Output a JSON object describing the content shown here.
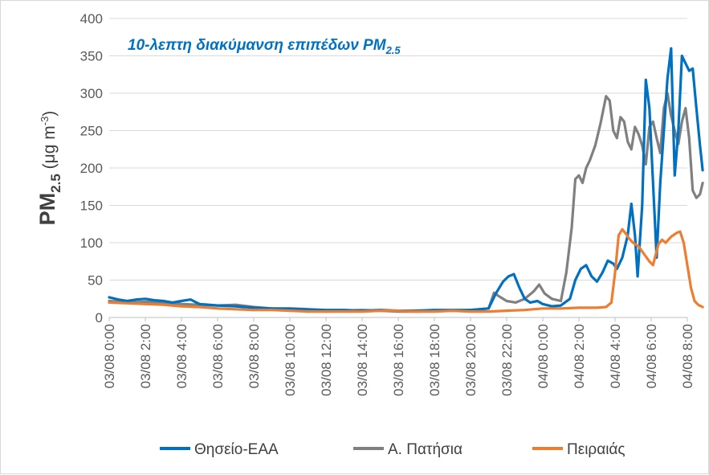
{
  "chart_data": {
    "type": "line",
    "title_main": "10-λεπτη διακύμανση επιπέδων PM",
    "title_sub": "2.5",
    "ylabel_main": "PM",
    "ylabel_sub": "2.5",
    "ylabel_unit": " (μg m",
    "ylabel_unit_sup": "-3",
    "ylabel_unit_end": ")",
    "ylim": [
      0,
      400
    ],
    "yticks": [
      "0",
      "50",
      "100",
      "150",
      "200",
      "250",
      "300",
      "350",
      "400"
    ],
    "x_range_hours": [
      0,
      32
    ],
    "xtick_labels": [
      "03/08 0:00",
      "03/08 2:00",
      "03/08 4:00",
      "03/08 6:00",
      "03/08 8:00",
      "03/08 10:00",
      "03/08 12:00",
      "03/08 14:00",
      "03/08 16:00",
      "03/08 18:00",
      "03/08 20:00",
      "03/08 22:00",
      "04/08 0:00",
      "04/08 2:00",
      "04/08 4:00",
      "04/08 6:00",
      "04/08 8:00"
    ],
    "grid": true,
    "legend_position": "bottom",
    "series": [
      {
        "name": "Θησείο-ΕΑΑ",
        "color": "#0070c0",
        "points": [
          [
            0,
            27
          ],
          [
            0.5,
            24
          ],
          [
            1,
            22
          ],
          [
            1.5,
            24
          ],
          [
            2,
            25
          ],
          [
            2.5,
            23
          ],
          [
            3,
            22
          ],
          [
            3.5,
            20
          ],
          [
            4,
            22
          ],
          [
            4.5,
            24
          ],
          [
            5,
            18
          ],
          [
            6,
            16
          ],
          [
            7,
            15
          ],
          [
            8,
            13
          ],
          [
            9,
            12
          ],
          [
            10,
            12
          ],
          [
            11,
            11
          ],
          [
            12,
            10
          ],
          [
            13,
            10
          ],
          [
            14,
            9
          ],
          [
            15,
            10
          ],
          [
            16,
            9
          ],
          [
            17,
            9
          ],
          [
            18,
            10
          ],
          [
            19,
            10
          ],
          [
            20,
            10
          ],
          [
            21,
            12
          ],
          [
            21.4,
            32
          ],
          [
            21.8,
            48
          ],
          [
            22.1,
            55
          ],
          [
            22.4,
            58
          ],
          [
            22.7,
            40
          ],
          [
            23,
            25
          ],
          [
            23.3,
            20
          ],
          [
            23.7,
            22
          ],
          [
            24,
            18
          ],
          [
            24.5,
            15
          ],
          [
            25,
            16
          ],
          [
            25.5,
            25
          ],
          [
            25.8,
            50
          ],
          [
            26.1,
            65
          ],
          [
            26.4,
            70
          ],
          [
            26.7,
            55
          ],
          [
            27,
            48
          ],
          [
            27.3,
            60
          ],
          [
            27.6,
            76
          ],
          [
            27.9,
            72
          ],
          [
            28.1,
            65
          ],
          [
            28.4,
            80
          ],
          [
            28.7,
            110
          ],
          [
            28.9,
            152
          ],
          [
            29.1,
            110
          ],
          [
            29.25,
            55
          ],
          [
            29.5,
            150
          ],
          [
            29.7,
            318
          ],
          [
            29.9,
            280
          ],
          [
            30.1,
            180
          ],
          [
            30.3,
            80
          ],
          [
            30.5,
            180
          ],
          [
            30.7,
            250
          ],
          [
            30.9,
            320
          ],
          [
            31.1,
            360
          ],
          [
            31.3,
            190
          ],
          [
            31.5,
            250
          ],
          [
            31.7,
            350
          ],
          [
            31.9,
            340
          ],
          [
            32.1,
            330
          ],
          [
            32.3,
            333
          ],
          [
            32.5,
            280
          ],
          [
            32.7,
            230
          ],
          [
            32.85,
            197
          ]
        ]
      },
      {
        "name": "Α. Πατήσια",
        "color": "#808080",
        "points": [
          [
            0,
            22
          ],
          [
            1,
            20
          ],
          [
            2,
            21
          ],
          [
            3,
            20
          ],
          [
            4,
            18
          ],
          [
            5,
            17
          ],
          [
            6,
            16
          ],
          [
            7,
            17
          ],
          [
            8,
            14
          ],
          [
            9,
            12
          ],
          [
            10,
            11
          ],
          [
            11,
            9
          ],
          [
            12,
            8
          ],
          [
            13,
            9
          ],
          [
            14,
            10
          ],
          [
            15,
            9
          ],
          [
            16,
            8
          ],
          [
            17,
            8
          ],
          [
            18,
            9
          ],
          [
            19,
            9
          ],
          [
            20,
            10
          ],
          [
            21,
            12
          ],
          [
            21.3,
            33
          ],
          [
            21.6,
            28
          ],
          [
            22,
            22
          ],
          [
            22.5,
            20
          ],
          [
            23,
            25
          ],
          [
            23.5,
            35
          ],
          [
            23.8,
            44
          ],
          [
            24.1,
            32
          ],
          [
            24.5,
            25
          ],
          [
            25,
            22
          ],
          [
            25.3,
            60
          ],
          [
            25.6,
            120
          ],
          [
            25.8,
            185
          ],
          [
            26,
            190
          ],
          [
            26.2,
            180
          ],
          [
            26.4,
            200
          ],
          [
            26.6,
            210
          ],
          [
            26.9,
            230
          ],
          [
            27.2,
            260
          ],
          [
            27.5,
            296
          ],
          [
            27.7,
            290
          ],
          [
            27.9,
            250
          ],
          [
            28.1,
            240
          ],
          [
            28.3,
            268
          ],
          [
            28.5,
            262
          ],
          [
            28.7,
            235
          ],
          [
            28.9,
            225
          ],
          [
            29.1,
            255
          ],
          [
            29.3,
            245
          ],
          [
            29.5,
            230
          ],
          [
            29.7,
            205
          ],
          [
            29.9,
            255
          ],
          [
            30.1,
            262
          ],
          [
            30.3,
            240
          ],
          [
            30.5,
            220
          ],
          [
            30.7,
            280
          ],
          [
            30.9,
            300
          ],
          [
            31.1,
            270
          ],
          [
            31.3,
            250
          ],
          [
            31.5,
            232
          ],
          [
            31.7,
            262
          ],
          [
            31.9,
            280
          ],
          [
            32.1,
            240
          ],
          [
            32.3,
            170
          ],
          [
            32.5,
            160
          ],
          [
            32.7,
            165
          ],
          [
            32.85,
            180
          ]
        ]
      },
      {
        "name": "Πειραιάς",
        "color": "#ed7d31",
        "points": [
          [
            0,
            20
          ],
          [
            1,
            19
          ],
          [
            2,
            18
          ],
          [
            3,
            17
          ],
          [
            4,
            15
          ],
          [
            5,
            14
          ],
          [
            6,
            12
          ],
          [
            7,
            11
          ],
          [
            8,
            10
          ],
          [
            9,
            10
          ],
          [
            10,
            9
          ],
          [
            11,
            8
          ],
          [
            12,
            8
          ],
          [
            13,
            8
          ],
          [
            14,
            8
          ],
          [
            15,
            9
          ],
          [
            16,
            9
          ],
          [
            17,
            8
          ],
          [
            18,
            8
          ],
          [
            19,
            9
          ],
          [
            20,
            8
          ],
          [
            21,
            8
          ],
          [
            22,
            9
          ],
          [
            23,
            10
          ],
          [
            24,
            12
          ],
          [
            25,
            12
          ],
          [
            26,
            13
          ],
          [
            27,
            13
          ],
          [
            27.5,
            14
          ],
          [
            27.8,
            20
          ],
          [
            28,
            60
          ],
          [
            28.2,
            110
          ],
          [
            28.4,
            118
          ],
          [
            28.6,
            112
          ],
          [
            28.8,
            105
          ],
          [
            29,
            100
          ],
          [
            29.3,
            95
          ],
          [
            29.6,
            85
          ],
          [
            29.9,
            75
          ],
          [
            30.1,
            70
          ],
          [
            30.4,
            98
          ],
          [
            30.6,
            104
          ],
          [
            30.8,
            100
          ],
          [
            31.1,
            108
          ],
          [
            31.4,
            113
          ],
          [
            31.6,
            115
          ],
          [
            31.8,
            100
          ],
          [
            32,
            70
          ],
          [
            32.2,
            40
          ],
          [
            32.4,
            22
          ],
          [
            32.6,
            17
          ],
          [
            32.85,
            14
          ]
        ]
      }
    ]
  }
}
